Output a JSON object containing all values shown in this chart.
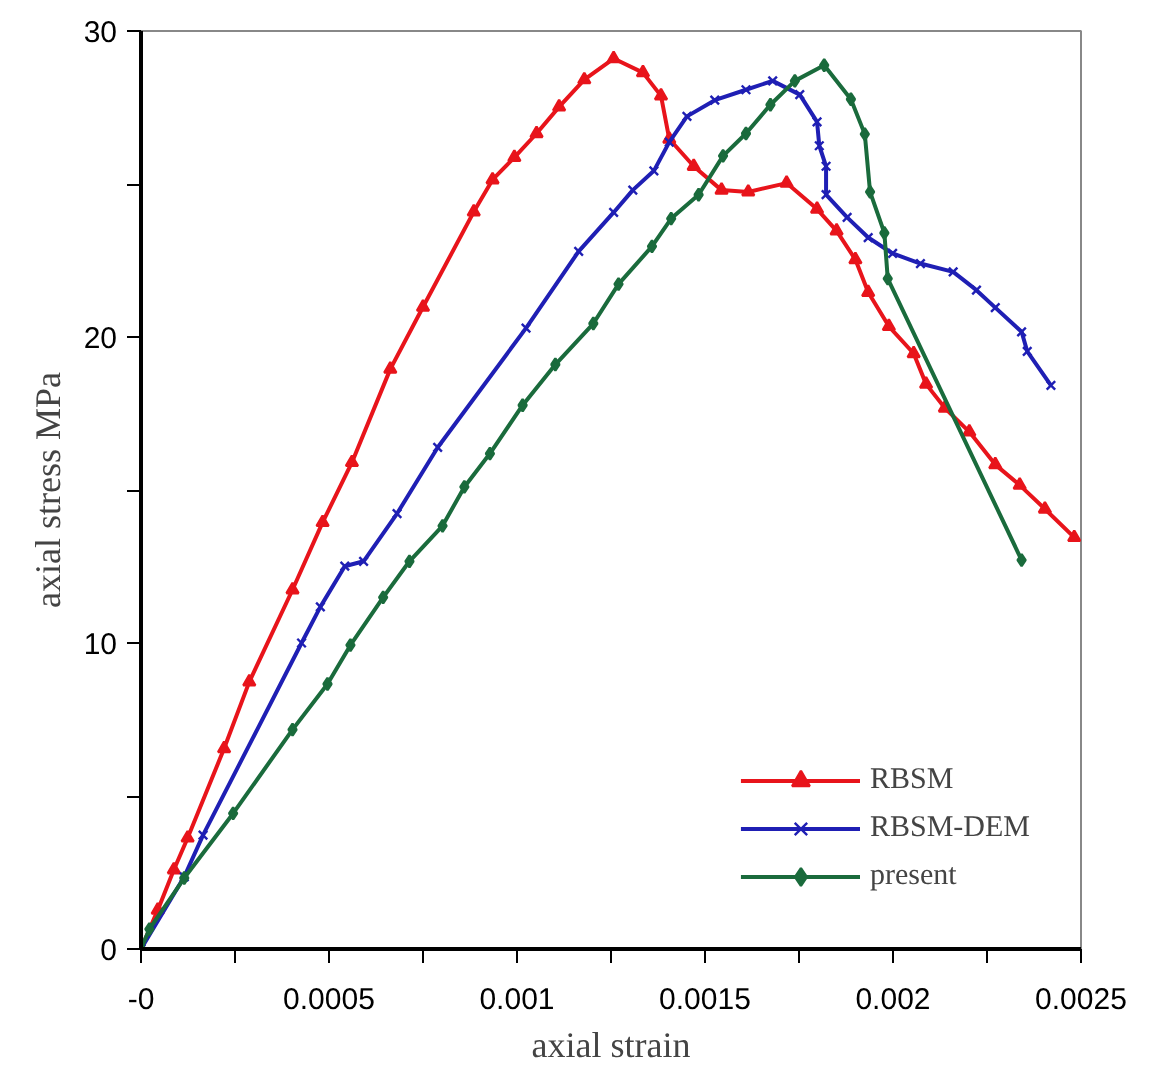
{
  "chart_data": {
    "type": "line",
    "xlabel": "axial strain",
    "ylabel": "axial stress MPa",
    "xlim": [
      0,
      0.0025
    ],
    "ylim": [
      0,
      30
    ],
    "xticks": [
      {
        "value": 0,
        "label": "-0"
      },
      {
        "value": 0.00025,
        "label": null
      },
      0.0005,
      {
        "value": 0.00075,
        "label": null
      },
      0.001,
      {
        "value": 0.00125,
        "label": null
      },
      0.0015,
      {
        "value": 0.00175,
        "label": null
      },
      0.002,
      {
        "value": 0.00225,
        "label": null
      },
      0.0025
    ],
    "yticks": [
      0,
      {
        "value": 5,
        "label": null
      },
      10,
      {
        "value": 15,
        "label": null
      },
      20,
      {
        "value": 25,
        "label": null
      },
      30
    ],
    "grid": false,
    "legend": "bottom right",
    "line_style": "solid",
    "series": [
      {
        "name": "RBSM",
        "color": "#e8141b",
        "marker": "triangle",
        "x": [
          0,
          4.45e-05,
          8.74e-05,
          0.000124,
          0.000221,
          0.000288,
          0.000403,
          0.000483,
          0.000561,
          0.000663,
          0.00075,
          0.000885,
          0.000935,
          0.000993,
          0.001052,
          0.001112,
          0.001179,
          0.001257,
          0.001335,
          0.001383,
          0.001405,
          0.00147,
          0.001544,
          0.001615,
          0.001717,
          0.001798,
          0.00185,
          0.0019,
          0.001934,
          0.001989,
          0.002055,
          0.002088,
          0.002138,
          0.002203,
          0.002272,
          0.002337,
          0.002404,
          0.002482
        ],
        "values": [
          0,
          1.27,
          2.59,
          3.63,
          6.55,
          8.73,
          11.74,
          13.94,
          15.9,
          18.95,
          20.98,
          24.09,
          25.14,
          25.87,
          26.65,
          27.52,
          28.41,
          29.1,
          28.64,
          27.88,
          26.47,
          25.58,
          24.8,
          24.74,
          25.03,
          24.18,
          23.47,
          22.53,
          21.46,
          20.35,
          19.46,
          18.46,
          17.68,
          16.9,
          15.83,
          15.16,
          14.38,
          13.45
        ]
      },
      {
        "name": "RBSM-DEM",
        "color": "#1f1fb4",
        "marker": "cross",
        "x": [
          0,
          0.000115,
          0.000165,
          0.000427,
          0.000477,
          0.000542,
          0.000592,
          0.000681,
          0.000789,
          0.001024,
          0.001164,
          0.001257,
          0.001308,
          0.001364,
          0.001405,
          0.001452,
          0.001526,
          0.001609,
          0.00168,
          0.001752,
          0.001798,
          0.001804,
          0.001822,
          0.001822,
          0.001878,
          0.001934,
          0.001999,
          0.002073,
          0.00216,
          0.002222,
          0.002272,
          0.002342,
          0.002357,
          0.00242
        ],
        "values": [
          0,
          2.36,
          3.72,
          10.0,
          11.18,
          12.51,
          12.67,
          14.23,
          16.39,
          20.29,
          22.8,
          24.07,
          24.8,
          25.43,
          26.37,
          27.21,
          27.74,
          28.08,
          28.37,
          27.92,
          27.03,
          26.25,
          25.58,
          24.65,
          23.91,
          23.25,
          22.73,
          22.4,
          22.13,
          21.53,
          20.96,
          20.17,
          19.53,
          18.42
        ]
      },
      {
        "name": "present",
        "color": "#1a6b3c",
        "marker": "diamond",
        "x": [
          0,
          2.23e-05,
          0.000115,
          0.000245,
          0.000403,
          0.000496,
          0.000557,
          0.000644,
          0.000714,
          0.000802,
          0.00086,
          0.000928,
          0.001015,
          0.001102,
          0.001203,
          0.00127,
          0.001359,
          0.00141,
          0.001483,
          0.001548,
          0.001609,
          0.001674,
          0.001739,
          0.001817,
          0.001888,
          0.001925,
          0.001939,
          0.001977,
          0.001986,
          0.002342
        ],
        "values": [
          0,
          0.65,
          2.32,
          4.43,
          7.17,
          8.66,
          9.93,
          11.49,
          12.67,
          13.83,
          15.1,
          16.19,
          17.77,
          19.1,
          20.44,
          21.73,
          22.96,
          23.87,
          24.65,
          25.92,
          26.65,
          27.59,
          28.37,
          28.88,
          27.77,
          26.63,
          24.74,
          23.4,
          21.91,
          12.71
        ]
      }
    ]
  }
}
